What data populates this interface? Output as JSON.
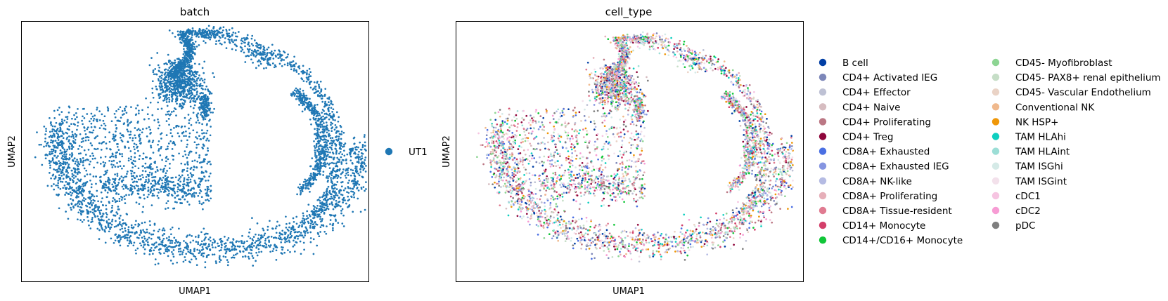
{
  "chart_data": [
    {
      "type": "scatter",
      "title": "batch",
      "xlabel": "UMAP1",
      "ylabel": "UMAP2",
      "grid": false,
      "ticks": "none",
      "legend": {
        "placement": "right",
        "entries": [
          {
            "name": "UT1",
            "color": "#1f77b4"
          }
        ]
      }
    },
    {
      "type": "scatter",
      "title": "cell_type",
      "xlabel": "UMAP1",
      "ylabel": "UMAP2",
      "grid": false,
      "ticks": "none",
      "legend": {
        "placement": "right",
        "columns": 2,
        "entries": [
          {
            "name": "B cell",
            "color": "#023fa5"
          },
          {
            "name": "CD4+ Activated IEG",
            "color": "#7d87b9"
          },
          {
            "name": "CD4+ Effector",
            "color": "#bec1d4"
          },
          {
            "name": "CD4+ Naive",
            "color": "#d6bcc0"
          },
          {
            "name": "CD4+ Proliferating",
            "color": "#bb7784"
          },
          {
            "name": "CD4+ Treg",
            "color": "#8e063b"
          },
          {
            "name": "CD8A+ Exhausted",
            "color": "#4a6fe3"
          },
          {
            "name": "CD8A+ Exhausted IEG",
            "color": "#8595e1"
          },
          {
            "name": "CD8A+ NK-like",
            "color": "#b5bbe3"
          },
          {
            "name": "CD8A+ Proliferating",
            "color": "#e6afb9"
          },
          {
            "name": "CD8A+ Tissue-resident",
            "color": "#e07b91"
          },
          {
            "name": "CD14+ Monocyte",
            "color": "#d33f6a"
          },
          {
            "name": "CD14+/CD16+ Monocyte",
            "color": "#11c638"
          },
          {
            "name": "CD45- Myofibroblast",
            "color": "#8dd593"
          },
          {
            "name": "CD45- PAX8+ renal epithelium",
            "color": "#c6dec7"
          },
          {
            "name": "CD45- Vascular Endothelium",
            "color": "#ead3c6"
          },
          {
            "name": "Conventional NK",
            "color": "#f0b98d"
          },
          {
            "name": "NK HSP+",
            "color": "#ef9708"
          },
          {
            "name": "TAM HLAhi",
            "color": "#0fcfc0"
          },
          {
            "name": "TAM HLAint",
            "color": "#9cded6"
          },
          {
            "name": "TAM ISGhi",
            "color": "#d5eae7"
          },
          {
            "name": "TAM ISGint",
            "color": "#f3e1eb"
          },
          {
            "name": "cDC1",
            "color": "#f6c4e1"
          },
          {
            "name": "cDC2",
            "color": "#f79cd4"
          },
          {
            "name": "pDC",
            "color": "#7f7f7f"
          }
        ]
      }
    }
  ]
}
